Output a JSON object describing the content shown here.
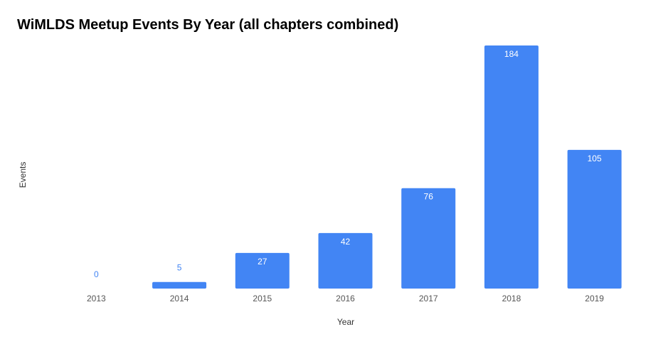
{
  "chart_data": {
    "type": "bar",
    "title": "WiMLDS Meetup Events By Year (all chapters combined)",
    "xlabel": "Year",
    "ylabel": "Events",
    "categories": [
      "2013",
      "2014",
      "2015",
      "2016",
      "2017",
      "2018",
      "2019"
    ],
    "values": [
      0,
      5,
      27,
      42,
      76,
      184,
      105
    ],
    "ylim": [
      0,
      184
    ],
    "grid": false,
    "legend": "none",
    "bar_color": "#4285F4",
    "label_inside_color": "#ffffff",
    "label_outside_color": "#4285F4"
  }
}
